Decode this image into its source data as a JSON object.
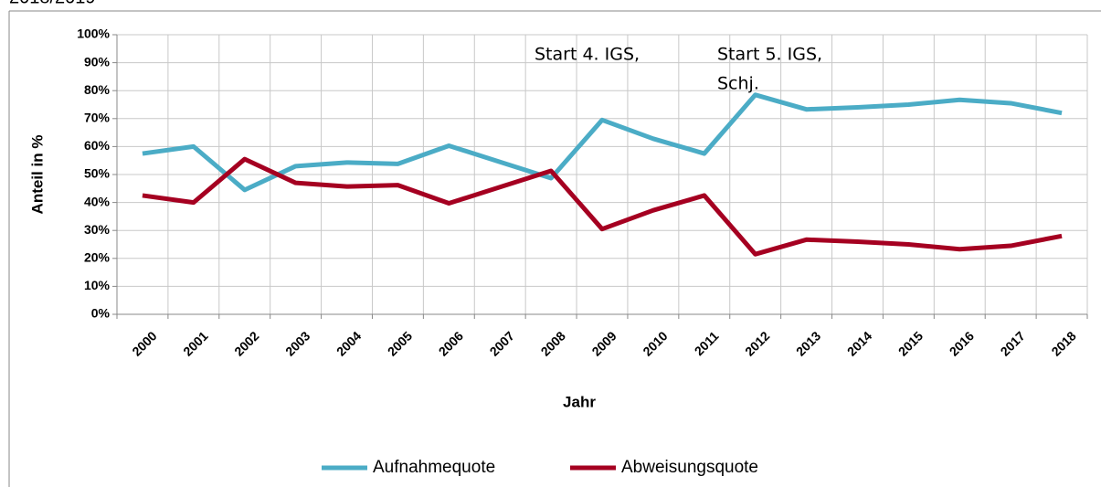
{
  "caption": "2018/2019",
  "chart_data": {
    "type": "line",
    "ylabel": "Anteil in %",
    "xlabel": "Jahr",
    "annotations": [
      "Start 4. IGS,",
      "Start 5. IGS,",
      "Schj."
    ],
    "categories": [
      "2000",
      "2001",
      "2002",
      "2003",
      "2004",
      "2005",
      "2006",
      "2007",
      "2008",
      "2009",
      "2010",
      "2011",
      "2012",
      "2013",
      "2014",
      "2015",
      "2016",
      "2017",
      "2018"
    ],
    "series": [
      {
        "name": "Aufnahmequote",
        "color": "#4bacc6",
        "values": [
          57.5,
          60,
          44.5,
          53,
          54.3,
          53.8,
          60.3,
          54.5,
          48.7,
          69.5,
          62.8,
          57.5,
          78.5,
          73.3,
          74,
          75,
          76.7,
          75.5,
          72
        ]
      },
      {
        "name": "Abweisungsquote",
        "color": "#a50021",
        "values": [
          42.5,
          40,
          55.5,
          47,
          45.7,
          46.2,
          39.7,
          45.5,
          51.3,
          30.5,
          37.2,
          42.5,
          21.5,
          26.7,
          26,
          25,
          23.3,
          24.5,
          28
        ]
      }
    ],
    "ylim": [
      0,
      100
    ],
    "yticks": [
      {
        "value": 0,
        "label": "0%"
      },
      {
        "value": 10,
        "label": "10%"
      },
      {
        "value": 20,
        "label": "20%"
      },
      {
        "value": 30,
        "label": "30%"
      },
      {
        "value": 40,
        "label": "40%"
      },
      {
        "value": 50,
        "label": "50%"
      },
      {
        "value": 60,
        "label": "60%"
      },
      {
        "value": 70,
        "label": "70%"
      },
      {
        "value": 80,
        "label": "80%"
      },
      {
        "value": 90,
        "label": "90%"
      },
      {
        "value": 100,
        "label": "100%"
      }
    ],
    "grid": true,
    "legend": "bottom"
  }
}
